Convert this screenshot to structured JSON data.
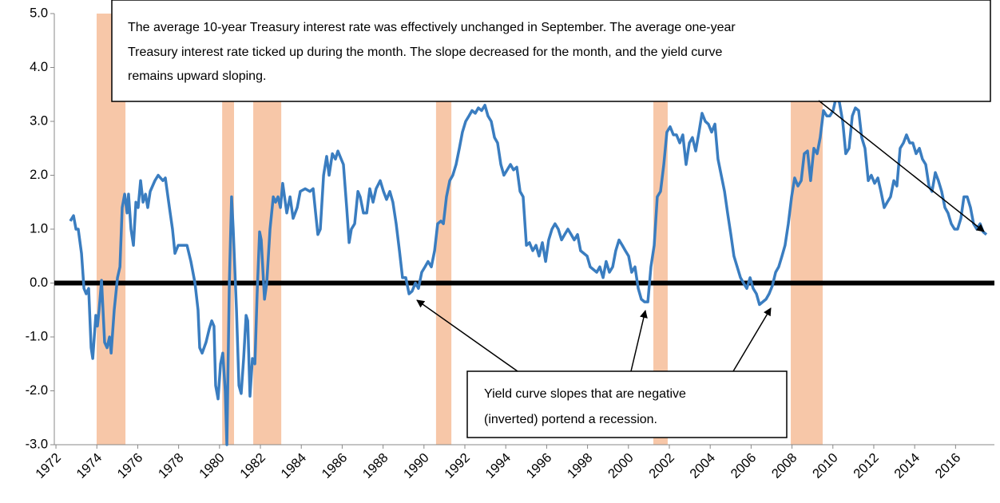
{
  "chart_data": {
    "type": "line",
    "annotations": [
      {
        "lines": [
          "The average 10-year Treasury interest rate was effectively unchanged in  September. The average one-year",
          "Treasury interest rate  ticked up during the month. The slope decreased for the month, and the yield curve",
          "remains upward sloping."
        ]
      },
      {
        "lines": [
          "Yield curve slopes that are negative",
          "(inverted) portend a recession."
        ]
      }
    ],
    "color": "#3a7dc0",
    "recession_color": "#f7c7a8",
    "zero_line": true,
    "xlim": [
      1971.92,
      2017.9
    ],
    "ylim": [
      -3,
      5
    ],
    "yticks": [
      {
        "value": -3,
        "label": "-3.0"
      },
      {
        "value": -2,
        "label": "-2.0"
      },
      {
        "value": -1,
        "label": "-1.0"
      },
      {
        "value": 0,
        "label": "0.0"
      },
      {
        "value": 1,
        "label": "1.0"
      },
      {
        "value": 2,
        "label": "2.0"
      },
      {
        "value": 3,
        "label": "3.0"
      },
      {
        "value": 4,
        "label": "4.0"
      },
      {
        "value": 5,
        "label": "5.0"
      }
    ],
    "xticks": [
      1972,
      1974,
      1976,
      1978,
      1980,
      1982,
      1984,
      1986,
      1988,
      1990,
      1992,
      1994,
      1996,
      1998,
      2000,
      2002,
      2004,
      2006,
      2008,
      2010,
      2012,
      2014,
      2016
    ],
    "recessions": [
      [
        1973.99,
        1975.4
      ],
      [
        1980.13,
        1980.71
      ],
      [
        1981.65,
        1983.02
      ],
      [
        1990.59,
        1991.34
      ],
      [
        2001.22,
        2001.92
      ],
      [
        2007.94,
        2009.5
      ]
    ],
    "x": [
      1972.7,
      1972.86,
      1972.98,
      1973.09,
      1973.25,
      1973.37,
      1973.48,
      1973.6,
      1973.72,
      1973.8,
      1973.95,
      1974.03,
      1974.11,
      1974.23,
      1974.38,
      1974.5,
      1974.62,
      1974.7,
      1974.85,
      1975.01,
      1975.13,
      1975.24,
      1975.36,
      1975.48,
      1975.55,
      1975.67,
      1975.79,
      1975.91,
      1976.02,
      1976.14,
      1976.26,
      1976.38,
      1976.49,
      1976.61,
      1976.84,
      1977.0,
      1977.23,
      1977.35,
      1977.55,
      1977.7,
      1977.82,
      1977.98,
      1978.17,
      1978.41,
      1978.6,
      1978.8,
      1978.95,
      1979.03,
      1979.15,
      1979.34,
      1979.5,
      1979.62,
      1979.73,
      1979.81,
      1979.93,
      1980.05,
      1980.16,
      1980.28,
      1980.36,
      1980.48,
      1980.59,
      1980.67,
      1980.83,
      1980.95,
      1981.06,
      1981.18,
      1981.3,
      1981.38,
      1981.49,
      1981.61,
      1981.73,
      1981.84,
      1981.96,
      1982.04,
      1982.2,
      1982.31,
      1982.47,
      1982.63,
      1982.74,
      1982.86,
      1982.98,
      1983.09,
      1983.29,
      1983.45,
      1983.6,
      1983.8,
      1983.95,
      1984.19,
      1984.42,
      1984.58,
      1984.7,
      1984.81,
      1984.93,
      1985.09,
      1985.24,
      1985.36,
      1985.52,
      1985.67,
      1985.79,
      1985.95,
      1986.06,
      1986.22,
      1986.34,
      1986.45,
      1986.61,
      1986.77,
      1986.88,
      1987.04,
      1987.2,
      1987.35,
      1987.51,
      1987.66,
      1987.86,
      1988.02,
      1988.17,
      1988.33,
      1988.48,
      1988.64,
      1988.8,
      1988.95,
      1989.11,
      1989.27,
      1989.42,
      1989.58,
      1989.73,
      1989.89,
      1990.05,
      1990.2,
      1990.36,
      1990.52,
      1990.67,
      1990.83,
      1990.95,
      1991.1,
      1991.26,
      1991.41,
      1991.57,
      1991.73,
      1991.88,
      1992.04,
      1992.2,
      1992.35,
      1992.51,
      1992.66,
      1992.82,
      1992.98,
      1993.13,
      1993.29,
      1993.45,
      1993.6,
      1993.76,
      1993.91,
      1994.07,
      1994.23,
      1994.38,
      1994.54,
      1994.7,
      1994.85,
      1995.01,
      1995.16,
      1995.32,
      1995.48,
      1995.63,
      1995.79,
      1995.95,
      1996.1,
      1996.26,
      1996.41,
      1996.57,
      1996.73,
      1996.88,
      1997.04,
      1997.2,
      1997.35,
      1997.51,
      1997.66,
      1997.82,
      1997.98,
      1998.13,
      1998.29,
      1998.45,
      1998.6,
      1998.76,
      1998.91,
      1999.07,
      1999.23,
      1999.38,
      1999.54,
      1999.7,
      1999.85,
      2000.01,
      2000.16,
      2000.32,
      2000.48,
      2000.63,
      2000.79,
      2000.95,
      2001.1,
      2001.26,
      2001.41,
      2001.57,
      2001.73,
      2001.88,
      2002.04,
      2002.2,
      2002.35,
      2002.51,
      2002.66,
      2002.82,
      2002.98,
      2003.13,
      2003.29,
      2003.45,
      2003.6,
      2003.76,
      2003.91,
      2004.07,
      2004.23,
      2004.38,
      2004.54,
      2004.7,
      2004.85,
      2005.01,
      2005.16,
      2005.32,
      2005.48,
      2005.63,
      2005.79,
      2005.95,
      2006.1,
      2006.26,
      2006.41,
      2006.57,
      2006.73,
      2006.88,
      2007.04,
      2007.2,
      2007.35,
      2007.51,
      2007.66,
      2007.82,
      2007.98,
      2008.13,
      2008.29,
      2008.45,
      2008.6,
      2008.76,
      2008.91,
      2009.07,
      2009.23,
      2009.38,
      2009.54,
      2009.7,
      2009.85,
      2010.01,
      2010.16,
      2010.32,
      2010.48,
      2010.63,
      2010.79,
      2010.95,
      2011.1,
      2011.26,
      2011.41,
      2011.57,
      2011.73,
      2011.88,
      2012.04,
      2012.2,
      2012.35,
      2012.51,
      2012.66,
      2012.82,
      2012.98,
      2013.13,
      2013.29,
      2013.45,
      2013.6,
      2013.76,
      2013.91,
      2014.07,
      2014.23,
      2014.38,
      2014.54,
      2014.7,
      2014.85,
      2015.01,
      2015.16,
      2015.32,
      2015.48,
      2015.63,
      2015.79,
      2015.95,
      2016.1,
      2016.26,
      2016.41,
      2016.57,
      2016.73,
      2016.88,
      2017.04,
      2017.2,
      2017.35,
      2017.51
    ],
    "values": [
      1.15,
      1.25,
      1.0,
      1.0,
      0.55,
      -0.1,
      -0.2,
      -0.1,
      -1.2,
      -1.4,
      -0.6,
      -0.8,
      -0.5,
      0.05,
      -1.1,
      -1.2,
      -1.0,
      -1.3,
      -0.5,
      0.1,
      0.3,
      1.4,
      1.65,
      1.3,
      1.65,
      1.0,
      0.7,
      1.5,
      1.4,
      1.9,
      1.5,
      1.65,
      1.4,
      1.7,
      1.9,
      2.0,
      1.9,
      1.95,
      1.4,
      1.0,
      0.55,
      0.7,
      0.7,
      0.7,
      0.4,
      0.0,
      -0.5,
      -1.2,
      -1.3,
      -1.1,
      -0.85,
      -0.7,
      -0.8,
      -1.9,
      -2.15,
      -1.5,
      -1.3,
      -2.0,
      -3.0,
      0.0,
      1.6,
      1.0,
      -0.5,
      -1.9,
      -2.05,
      -1.4,
      -0.6,
      -0.7,
      -2.1,
      -1.4,
      -1.5,
      -0.2,
      0.95,
      0.8,
      -0.3,
      0.0,
      1.0,
      1.6,
      1.5,
      1.6,
      1.4,
      1.85,
      1.3,
      1.6,
      1.2,
      1.4,
      1.7,
      1.75,
      1.7,
      1.75,
      1.3,
      0.9,
      1.0,
      2.0,
      2.35,
      2.0,
      2.4,
      2.3,
      2.45,
      2.3,
      2.2,
      1.4,
      0.75,
      1.0,
      1.1,
      1.7,
      1.6,
      1.3,
      1.3,
      1.75,
      1.5,
      1.75,
      1.9,
      1.7,
      1.55,
      1.7,
      1.5,
      1.1,
      0.6,
      0.1,
      0.1,
      -0.2,
      -0.15,
      0.0,
      -0.1,
      0.2,
      0.3,
      0.4,
      0.3,
      0.6,
      1.1,
      1.15,
      1.1,
      1.6,
      1.9,
      2.0,
      2.2,
      2.5,
      2.8,
      3.0,
      3.1,
      3.2,
      3.15,
      3.25,
      3.2,
      3.3,
      3.1,
      3.0,
      2.7,
      2.6,
      2.2,
      2.0,
      2.1,
      2.2,
      2.1,
      2.15,
      1.7,
      1.6,
      0.7,
      0.75,
      0.6,
      0.7,
      0.5,
      0.75,
      0.4,
      0.8,
      1.0,
      1.1,
      1.0,
      0.8,
      0.9,
      1.0,
      0.9,
      0.8,
      0.9,
      0.6,
      0.55,
      0.5,
      0.3,
      0.25,
      0.2,
      0.3,
      0.1,
      0.4,
      0.2,
      0.3,
      0.6,
      0.8,
      0.7,
      0.6,
      0.5,
      0.2,
      0.3,
      -0.1,
      -0.3,
      -0.35,
      -0.35,
      0.3,
      0.7,
      1.6,
      1.7,
      2.2,
      2.8,
      2.9,
      2.75,
      2.75,
      2.6,
      2.75,
      2.2,
      2.6,
      2.7,
      2.45,
      2.8,
      3.15,
      3.0,
      2.95,
      2.8,
      2.95,
      2.3,
      2.0,
      1.7,
      1.3,
      0.9,
      0.5,
      0.3,
      0.1,
      0.0,
      -0.1,
      0.1,
      -0.1,
      -0.2,
      -0.4,
      -0.35,
      -0.3,
      -0.2,
      -0.05,
      0.2,
      0.3,
      0.5,
      0.7,
      1.1,
      1.6,
      1.95,
      1.8,
      1.9,
      2.4,
      2.45,
      1.9,
      2.5,
      2.4,
      2.7,
      3.2,
      3.1,
      3.1,
      3.2,
      3.45,
      3.35,
      3.0,
      2.4,
      2.5,
      3.1,
      3.25,
      3.2,
      2.7,
      2.5,
      1.9,
      2.0,
      1.85,
      1.95,
      1.7,
      1.4,
      1.5,
      1.6,
      1.9,
      1.8,
      2.5,
      2.6,
      2.75,
      2.6,
      2.6,
      2.4,
      2.5,
      2.3,
      2.2,
      1.8,
      1.7,
      2.05,
      1.9,
      1.7,
      1.4,
      1.3,
      1.1,
      1.0,
      1.0,
      1.2,
      1.6,
      1.6,
      1.4,
      1.1,
      1.0,
      1.1,
      0.95,
      0.9
    ]
  }
}
